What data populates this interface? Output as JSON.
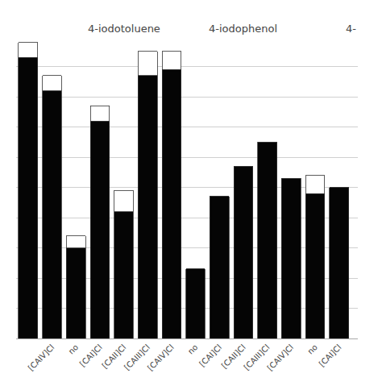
{
  "chart_data": {
    "type": "bar",
    "stacked": true,
    "categories": [
      null,
      "[CAIV]Cl",
      "no",
      "[CAI]Cl",
      "[CAII]Cl",
      "[CAIII]Cl",
      "[CAIV]Cl",
      "no",
      "[CAI]Cl",
      "[CAII]Cl",
      "[CAIII]Cl",
      "[CAIV]Cl",
      "no",
      "[CAI]Cl"
    ],
    "series": [
      {
        "color": "#050505",
        "values": [
          93,
          82,
          30,
          72,
          42,
          87,
          89,
          23,
          47,
          57,
          65,
          53,
          48,
          50
        ]
      },
      {
        "color": "#ffffff",
        "values": [
          5,
          5,
          4,
          5,
          7,
          8,
          6,
          0,
          0,
          0,
          0,
          0,
          6,
          0
        ]
      }
    ],
    "ylim": [
      0,
      100
    ],
    "yticks": [
      0,
      10,
      20,
      30,
      40,
      50,
      60,
      70,
      80,
      90,
      100
    ],
    "grid": true,
    "tick_labels": "x",
    "annotations": [
      {
        "text": "4-iodotoluene",
        "x": 4
      },
      {
        "text": "4-iodophenol",
        "x": 9
      },
      {
        "text": "4-",
        "x": 13.5
      }
    ]
  }
}
